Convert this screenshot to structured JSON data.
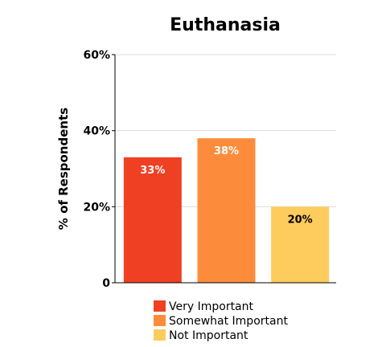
{
  "chart_data": {
    "type": "bar",
    "title": "Euthanasia",
    "xlabel": "",
    "ylabel": "% of Respondents",
    "ylim": [
      0,
      60
    ],
    "yticks": [
      0,
      20,
      40,
      60
    ],
    "ytick_labels": [
      "0",
      "20%",
      "40%",
      "60%"
    ],
    "grid": true,
    "legend_position": "bottom",
    "categories": [
      "Very Important",
      "Somewhat Important",
      "Not Important"
    ],
    "values": [
      33,
      38,
      20
    ],
    "data_labels": [
      "33%",
      "38%",
      "20%"
    ],
    "colors": [
      "#ef4023",
      "#fc8c3b",
      "#fecc5c"
    ],
    "label_colors": [
      "#ffffff",
      "#ffffff",
      "#000000"
    ]
  }
}
